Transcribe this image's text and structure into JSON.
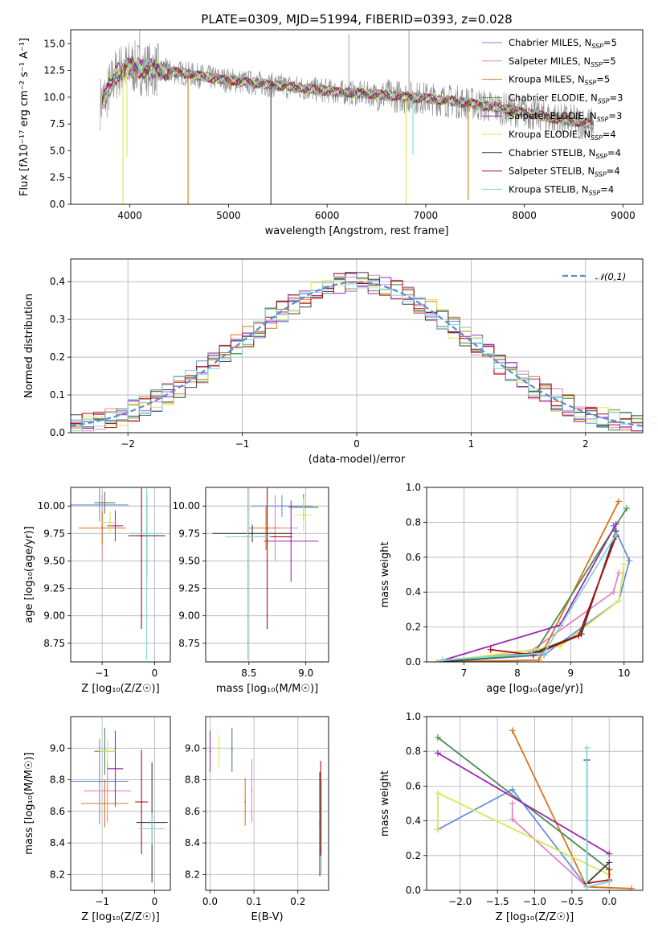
{
  "figure": {
    "title": "PLATE=0309, MJD=51994, FIBERID=0393, z=0.028"
  },
  "series": [
    {
      "key": "chab_miles",
      "color": "#6b8ee0"
    },
    {
      "key": "salp_miles",
      "color": "#e583c0"
    },
    {
      "key": "krou_miles",
      "color": "#d9741d"
    },
    {
      "key": "chab_elodie",
      "color": "#4f8a52"
    },
    {
      "key": "salp_elodie",
      "color": "#9c27b0"
    },
    {
      "key": "krou_elodie",
      "color": "#d4ea55"
    },
    {
      "key": "chab_stelib",
      "color": "#3c3c3c"
    },
    {
      "key": "salp_stelib",
      "color": "#b30e0e"
    },
    {
      "key": "krou_stelib",
      "color": "#7fd9d9"
    }
  ],
  "panel1": {
    "type": "line",
    "xlabel": "wavelength [Angstrom, rest frame]",
    "ylabel": "Flux [fλ10⁻¹⁷ erg cm⁻² s⁻¹ A⁻¹]",
    "xlim": [
      3400,
      9200
    ],
    "ylim": [
      0,
      16.3
    ],
    "xticks": [
      4000,
      5000,
      6000,
      7000,
      8000,
      9000
    ],
    "yticks": [
      0.0,
      2.5,
      5.0,
      7.5,
      10.0,
      12.5,
      15.0
    ],
    "ytick_labels": [
      "0.0",
      "2.5",
      "5.0",
      "7.5",
      "10.0",
      "12.5",
      "15.0"
    ],
    "legend_placement": "top-right",
    "legend": [
      {
        "name": "Chabrier MILES, N",
        "sub": "SSP",
        "tail": "=5"
      },
      {
        "name": "Salpeter MILES, N",
        "sub": "SSP",
        "tail": "=5"
      },
      {
        "name": "Kroupa MILES, N",
        "sub": "SSP",
        "tail": "=5"
      },
      {
        "name": "Chabrier ELODIE, N",
        "sub": "SSP",
        "tail": "=3"
      },
      {
        "name": "Salpeter ELODIE, N",
        "sub": "SSP",
        "tail": "=3"
      },
      {
        "name": "Kroupa ELODIE, N",
        "sub": "SSP",
        "tail": "=4"
      },
      {
        "name": "Chabrier STELIB, N",
        "sub": "SSP",
        "tail": "=4"
      },
      {
        "name": "Salpeter STELIB, N",
        "sub": "SSP",
        "tail": "=4"
      },
      {
        "name": "Kroupa STELIB, N",
        "sub": "SSP",
        "tail": "=4"
      }
    ],
    "continuum": {
      "x": [
        3700,
        3750,
        3800,
        3850,
        3900,
        4000,
        4100,
        4200,
        4300,
        4500,
        4700,
        4900,
        5100,
        5300,
        5500,
        5800,
        6100,
        6400,
        6700,
        7000,
        7200,
        7400,
        7600,
        7800,
        8000,
        8200,
        8400,
        8600,
        8700
      ],
      "y": [
        9.5,
        10.0,
        11.0,
        12.0,
        12.5,
        12.8,
        12.7,
        12.6,
        12.5,
        12.3,
        12.0,
        11.7,
        11.5,
        11.3,
        11.1,
        10.8,
        10.5,
        10.3,
        10.1,
        9.9,
        9.7,
        9.5,
        9.2,
        8.9,
        8.6,
        8.2,
        7.9,
        7.6,
        7.5
      ]
    },
    "dips": [
      {
        "x": 3930,
        "y": 0.0,
        "series": "krou_elodie"
      },
      {
        "x": 3970,
        "y": 4.4,
        "series": "krou_elodie"
      },
      {
        "x": 4590,
        "y": 0.0,
        "series": "krou_miles"
      },
      {
        "x": 5430,
        "y": 0.0,
        "series": "chab_stelib"
      },
      {
        "x": 6800,
        "y": 0.0,
        "series": "krou_elodie"
      },
      {
        "x": 6870,
        "y": 4.6,
        "series": "krou_stelib"
      },
      {
        "x": 7430,
        "y": 0.4,
        "series": "krou_miles"
      }
    ],
    "spikes": [
      {
        "x": 4100,
        "y": 16.3
      },
      {
        "x": 6220,
        "y": 15.9
      },
      {
        "x": 6830,
        "y": 16.3
      }
    ]
  },
  "panel2": {
    "type": "area",
    "xlabel": "(data-model)/error",
    "ylabel": "Normed distribution",
    "xlim": [
      -2.5,
      2.5
    ],
    "ylim": [
      0,
      0.46
    ],
    "xticks": [
      -2,
      -1,
      0,
      1,
      2
    ],
    "xtick_labels": [
      "−2",
      "−1",
      "0",
      "1",
      "2"
    ],
    "yticks": [
      0.0,
      0.1,
      0.2,
      0.3,
      0.4
    ],
    "ytick_labels": [
      "0.0",
      "0.1",
      "0.2",
      "0.3",
      "0.4"
    ],
    "legend_placement": "top-right",
    "legend_label": "𝒩(0,1)",
    "gaussian_color": "#5b8bd6",
    "hist_bin_width": 0.1
  },
  "panel3": {
    "type": "scatter",
    "xlabel": "Z [log₁₀(Z/Z☉)]",
    "ylabel": "age  [log₁₀(age/yr)]",
    "xlim": [
      -1.6,
      0.3
    ],
    "ylim": [
      8.58,
      10.17
    ],
    "xticks": [
      -1,
      0
    ],
    "xtick_labels": [
      "−1",
      "0"
    ],
    "yticks": [
      8.75,
      9.0,
      9.25,
      9.5,
      9.75,
      10.0
    ],
    "ytick_labels": [
      "8.75",
      "9.00",
      "9.25",
      "9.50",
      "9.75",
      "10.00"
    ],
    "points": [
      {
        "series": "chab_miles",
        "x": -1.05,
        "xerr": 0.55,
        "y": 10.01,
        "yerr": 0.15
      },
      {
        "series": "salp_miles",
        "x": -1.0,
        "xerr": 0.45,
        "y": 9.8,
        "yerr": 0.3
      },
      {
        "series": "krou_miles",
        "x": -1.0,
        "xerr": 0.45,
        "y": 9.8,
        "yerr": 0.15
      },
      {
        "series": "chab_elodie",
        "x": -0.95,
        "xerr": 0.2,
        "y": 10.03,
        "yerr": 0.1
      },
      {
        "series": "salp_elodie",
        "x": -0.75,
        "xerr": 0.15,
        "y": 9.82,
        "yerr": 0.14
      },
      {
        "series": "krou_elodie",
        "x": -0.85,
        "xerr": 0.15,
        "y": 9.85,
        "yerr": 0.1
      },
      {
        "series": "chab_stelib",
        "x": -0.15,
        "xerr": 0.35,
        "y": 9.73,
        "yerr": 0.38
      },
      {
        "series": "salp_stelib",
        "x": -0.25,
        "xerr": 0.12,
        "y": 9.73,
        "yerr": 0.85
      },
      {
        "series": "krou_stelib",
        "x": -0.15,
        "xerr": 0.3,
        "y": 9.75,
        "yerr": 1.15
      }
    ]
  },
  "panel4": {
    "type": "scatter",
    "xlabel": "mass [log₁₀(M/M☉)]",
    "ylabel": "",
    "xlim": [
      8.12,
      9.2
    ],
    "ylim": [
      8.58,
      10.17
    ],
    "xticks": [
      8.5,
      9.0
    ],
    "xtick_labels": [
      "8.5",
      "9.0"
    ],
    "yticks": [
      8.75,
      9.0,
      9.25,
      9.5,
      9.75,
      10.0
    ],
    "ytick_labels": [
      "8.75",
      "9.00",
      "9.25",
      "9.50",
      "9.75",
      "10.00"
    ],
    "points": [
      {
        "series": "chab_miles",
        "x": 8.79,
        "xerr": 0.27,
        "y": 10.0,
        "yerr": 0.1
      },
      {
        "series": "salp_miles",
        "x": 8.73,
        "xerr": 0.2,
        "y": 9.8,
        "yerr": 0.3
      },
      {
        "series": "krou_miles",
        "x": 8.65,
        "xerr": 0.15,
        "y": 9.8,
        "yerr": 0.2
      },
      {
        "series": "chab_elodie",
        "x": 8.98,
        "xerr": 0.13,
        "y": 9.99,
        "yerr": 0.12
      },
      {
        "series": "salp_elodie",
        "x": 8.87,
        "xerr": 0.24,
        "y": 9.68,
        "yerr": 0.37
      },
      {
        "series": "krou_elodie",
        "x": 8.98,
        "xerr": 0.08,
        "y": 9.92,
        "yerr": 0.15
      },
      {
        "series": "chab_stelib",
        "x": 8.53,
        "xerr": 0.35,
        "y": 9.75,
        "yerr": 0.08
      },
      {
        "series": "salp_stelib",
        "x": 8.66,
        "xerr": 0.22,
        "y": 9.72,
        "yerr": 0.84
      },
      {
        "series": "krou_stelib",
        "x": 8.49,
        "xerr": 0.2,
        "y": 9.72,
        "yerr": 1.12
      }
    ]
  },
  "panel5": {
    "type": "line",
    "xlabel": "age  [log₁₀(age/yr)]",
    "ylabel": "mass weight",
    "xlim": [
      6.3,
      10.35
    ],
    "ylim": [
      0,
      1
    ],
    "xticks": [
      7,
      8,
      9,
      10
    ],
    "xtick_labels": [
      "7",
      "8",
      "9",
      "10"
    ],
    "yticks": [
      0,
      0.2,
      0.4,
      0.6,
      0.8,
      1.0
    ],
    "ytick_labels": [
      "0.0",
      "0.2",
      "0.4",
      "0.6",
      "0.8",
      "1.0"
    ],
    "lines": [
      {
        "series": "chab_miles",
        "x": [
          6.6,
          8.5,
          9.9,
          10.1,
          9.8
        ],
        "y": [
          0.0,
          0.04,
          0.35,
          0.58,
          0.78
        ]
      },
      {
        "series": "salp_miles",
        "x": [
          6.6,
          8.2,
          9.8,
          9.9
        ],
        "y": [
          0.01,
          0.05,
          0.4,
          0.51
        ]
      },
      {
        "series": "krou_miles",
        "x": [
          6.6,
          8.4,
          8.5,
          9.9
        ],
        "y": [
          0.0,
          0.01,
          0.07,
          0.92
        ]
      },
      {
        "series": "chab_elodie",
        "x": [
          6.6,
          8.3,
          10.05
        ],
        "y": [
          0.0,
          0.04,
          0.88
        ]
      },
      {
        "series": "salp_elodie",
        "x": [
          6.5,
          8.8,
          9.85
        ],
        "y": [
          0.0,
          0.21,
          0.79
        ]
      },
      {
        "series": "krou_elodie",
        "x": [
          6.5,
          8.8,
          9.9,
          10.0
        ],
        "y": [
          0.0,
          0.09,
          0.35,
          0.56
        ]
      },
      {
        "series": "chab_stelib",
        "x": [
          6.6,
          8.3,
          9.2,
          9.85
        ],
        "y": [
          0.0,
          0.05,
          0.16,
          0.75
        ]
      },
      {
        "series": "salp_stelib",
        "x": [
          7.5,
          8.3,
          9.15,
          9.85
        ],
        "y": [
          0.07,
          0.04,
          0.15,
          0.72
        ]
      },
      {
        "series": "krou_stelib",
        "x": [
          6.6,
          8.5,
          9.85
        ],
        "y": [
          0.01,
          0.05,
          0.73
        ]
      }
    ]
  },
  "panel6": {
    "type": "scatter",
    "xlabel": "Z [log₁₀(Z/Z☉)]",
    "ylabel": "mass [log₁₀(M/M☉)]",
    "xlim": [
      -1.6,
      0.3
    ],
    "ylim": [
      8.1,
      9.2
    ],
    "xticks": [
      -1,
      0
    ],
    "xtick_labels": [
      "−1",
      "0"
    ],
    "yticks": [
      8.2,
      8.4,
      8.6,
      8.8,
      9.0
    ],
    "ytick_labels": [
      "8.2",
      "8.4",
      "8.6",
      "8.8",
      "9.0"
    ],
    "points": [
      {
        "series": "chab_miles",
        "x": -1.05,
        "xerr": 0.55,
        "y": 8.79,
        "yerr": 0.27
      },
      {
        "series": "salp_miles",
        "x": -0.9,
        "xerr": 0.45,
        "y": 8.73,
        "yerr": 0.2
      },
      {
        "series": "krou_miles",
        "x": -0.95,
        "xerr": 0.45,
        "y": 8.65,
        "yerr": 0.15
      },
      {
        "series": "chab_elodie",
        "x": -0.95,
        "xerr": 0.2,
        "y": 8.98,
        "yerr": 0.15
      },
      {
        "series": "salp_elodie",
        "x": -0.75,
        "xerr": 0.15,
        "y": 8.87,
        "yerr": 0.24
      },
      {
        "series": "krou_elodie",
        "x": -0.9,
        "xerr": 0.15,
        "y": 8.98,
        "yerr": 0.08
      },
      {
        "series": "chab_stelib",
        "x": -0.05,
        "xerr": 0.3,
        "y": 8.53,
        "yerr": 0.38
      },
      {
        "series": "salp_stelib",
        "x": -0.25,
        "xerr": 0.12,
        "y": 8.66,
        "yerr": 0.33
      },
      {
        "series": "krou_stelib",
        "x": -0.05,
        "xerr": 0.25,
        "y": 8.49,
        "yerr": 0.1
      }
    ]
  },
  "panel7": {
    "type": "scatter",
    "xlabel": "E(B-V)",
    "ylabel": "",
    "xlim": [
      -0.01,
      0.27
    ],
    "ylim": [
      8.1,
      9.2
    ],
    "xticks": [
      0.0,
      0.1,
      0.2
    ],
    "xtick_labels": [
      "0.0",
      "0.1",
      "0.2"
    ],
    "yticks": [
      8.2,
      8.4,
      8.6,
      8.8,
      9.0
    ],
    "ytick_labels": [
      "8.2",
      "8.4",
      "8.6",
      "8.8",
      "9.0"
    ],
    "points": [
      {
        "series": "salp_elodie",
        "x": 0.0,
        "y": 8.98,
        "yerr": 0.13
      },
      {
        "series": "krou_elodie",
        "x": 0.02,
        "y": 8.98,
        "yerr": 0.1
      },
      {
        "series": "chab_elodie",
        "x": 0.05,
        "y": 8.99,
        "yerr": 0.14
      },
      {
        "series": "krou_miles",
        "x": 0.08,
        "y": 8.66,
        "yerr": 0.15
      },
      {
        "series": "salp_miles",
        "x": 0.095,
        "y": 8.73,
        "yerr": 0.2
      },
      {
        "series": "chab_stelib",
        "x": 0.25,
        "y": 8.52,
        "yerr": 0.33
      },
      {
        "series": "salp_stelib",
        "x": 0.252,
        "y": 8.62,
        "yerr": 0.3
      },
      {
        "series": "krou_stelib",
        "x": 0.254,
        "y": 8.5,
        "yerr": 0.3
      }
    ]
  },
  "panel8": {
    "type": "line",
    "xlabel": "Z [log₁₀(Z/Z☉)]",
    "ylabel": "mass weight",
    "xlim": [
      -2.45,
      0.45
    ],
    "ylim": [
      0,
      1
    ],
    "xticks": [
      -2.0,
      -1.5,
      -1.0,
      -0.5,
      0.0
    ],
    "xtick_labels": [
      "−2.0",
      "−1.5",
      "−1.0",
      "−0.5",
      "0.0"
    ],
    "yticks": [
      0,
      0.2,
      0.4,
      0.6,
      0.8,
      1.0
    ],
    "ytick_labels": [
      "0.0",
      "0.2",
      "0.4",
      "0.6",
      "0.8",
      "1.0"
    ],
    "lines": [
      {
        "series": "chab_miles",
        "x": [
          -2.3,
          -1.3,
          -0.3
        ],
        "y": [
          0.35,
          0.58,
          0.02
        ]
      },
      {
        "series": "salp_miles",
        "x": [
          -1.3,
          -1.3,
          -0.3,
          0.0
        ],
        "y": [
          0.5,
          0.41,
          0.02,
          0.05
        ]
      },
      {
        "series": "krou_miles",
        "x": [
          -1.3,
          -0.3,
          0.3
        ],
        "y": [
          0.92,
          0.02,
          0.01
        ]
      },
      {
        "series": "chab_elodie",
        "x": [
          -2.3,
          0.0
        ],
        "y": [
          0.88,
          0.12
        ]
      },
      {
        "series": "salp_elodie",
        "x": [
          -2.3,
          0.0
        ],
        "y": [
          0.79,
          0.21
        ]
      },
      {
        "series": "krou_elodie",
        "x": [
          -2.3,
          -2.3,
          0.0
        ],
        "y": [
          0.35,
          0.56,
          0.09
        ]
      },
      {
        "series": "chab_stelib",
        "x": [
          -0.3,
          -0.3,
          0.0
        ],
        "y": [
          0.75,
          0.04,
          0.16
        ]
      },
      {
        "series": "salp_stelib",
        "x": [
          -0.3,
          0.0,
          0.0
        ],
        "y": [
          0.04,
          0.06,
          0.12
        ]
      },
      {
        "series": "krou_stelib",
        "x": [
          -0.3,
          -0.3,
          0.0
        ],
        "y": [
          0.82,
          0.02,
          0.05
        ]
      }
    ]
  },
  "chart_data": [
    {
      "type": "line",
      "title": "PLATE=0309, MJD=51994, FIBERID=0393, z=0.028",
      "xlabel": "wavelength [Angstrom, rest frame]",
      "ylabel": "Flux [fλ10⁻¹⁷ erg cm⁻² s⁻¹ A⁻¹]",
      "xlim": [
        3400,
        9200
      ],
      "ylim": [
        0,
        16.3
      ],
      "grid": false,
      "legend": "top-right",
      "series_names": [
        "Chabrier MILES, NSSP=5",
        "Salpeter MILES, NSSP=5",
        "Kroupa MILES, NSSP=5",
        "Chabrier ELODIE, NSSP=3",
        "Salpeter ELODIE, NSSP=3",
        "Kroupa ELODIE, NSSP=4",
        "Chabrier STELIB, NSSP=4",
        "Salpeter STELIB, NSSP=4",
        "Kroupa STELIB, NSSP=4"
      ]
    },
    {
      "type": "area",
      "xlabel": "(data-model)/error",
      "ylabel": "Normed distribution",
      "xlim": [
        -2.5,
        2.5
      ],
      "ylim": [
        0,
        0.46
      ],
      "grid": true,
      "legend": "top-right",
      "series_names": [
        "𝒩(0,1)"
      ]
    },
    {
      "type": "scatter",
      "xlabel": "Z [log10(Z/Z☉)]",
      "ylabel": "age [log10(age/yr)]",
      "xlim": [
        -1.6,
        0.3
      ],
      "ylim": [
        8.58,
        10.17
      ],
      "grid": true
    },
    {
      "type": "scatter",
      "xlabel": "mass [log10(M/M☉)]",
      "xlim": [
        8.12,
        9.2
      ],
      "ylim": [
        8.58,
        10.17
      ],
      "grid": true
    },
    {
      "type": "line",
      "xlabel": "age [log10(age/yr)]",
      "ylabel": "mass weight",
      "xlim": [
        6.3,
        10.35
      ],
      "ylim": [
        0,
        1
      ],
      "grid": true
    },
    {
      "type": "scatter",
      "xlabel": "Z [log10(Z/Z☉)]",
      "ylabel": "mass [log10(M/M☉)]",
      "xlim": [
        -1.6,
        0.3
      ],
      "ylim": [
        8.1,
        9.2
      ],
      "grid": true
    },
    {
      "type": "scatter",
      "xlabel": "E(B-V)",
      "xlim": [
        -0.01,
        0.27
      ],
      "ylim": [
        8.1,
        9.2
      ],
      "grid": true
    },
    {
      "type": "line",
      "xlabel": "Z [log10(Z/Z☉)]",
      "ylabel": "mass weight",
      "xlim": [
        -2.45,
        0.45
      ],
      "ylim": [
        0,
        1
      ],
      "grid": true
    }
  ]
}
